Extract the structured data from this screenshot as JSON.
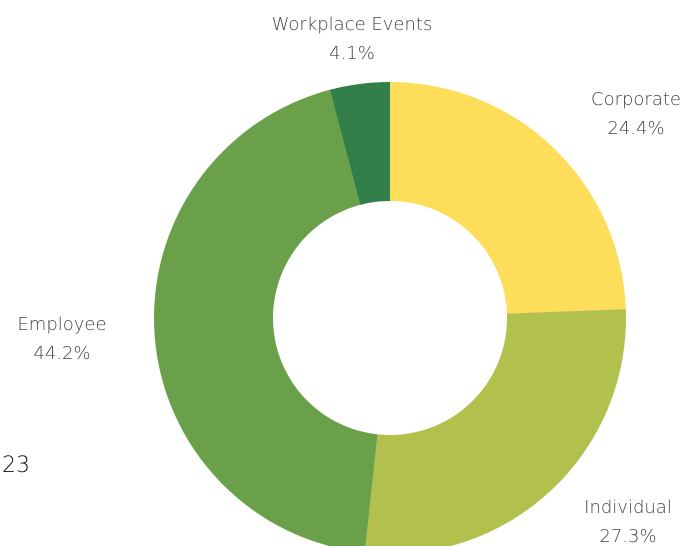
{
  "chart_data": {
    "type": "donut",
    "categories": [
      "Corporate",
      "Individual",
      "Employee",
      "Workplace Events"
    ],
    "values": [
      24.4,
      27.3,
      44.2,
      4.1
    ],
    "value_labels": [
      "24.4%",
      "27.3%",
      "44.2%",
      "4.1%"
    ],
    "colors": [
      "#fedd5a",
      "#b2c04e",
      "#6aa04a",
      "#327f4a"
    ],
    "annotations": [
      "23"
    ]
  }
}
